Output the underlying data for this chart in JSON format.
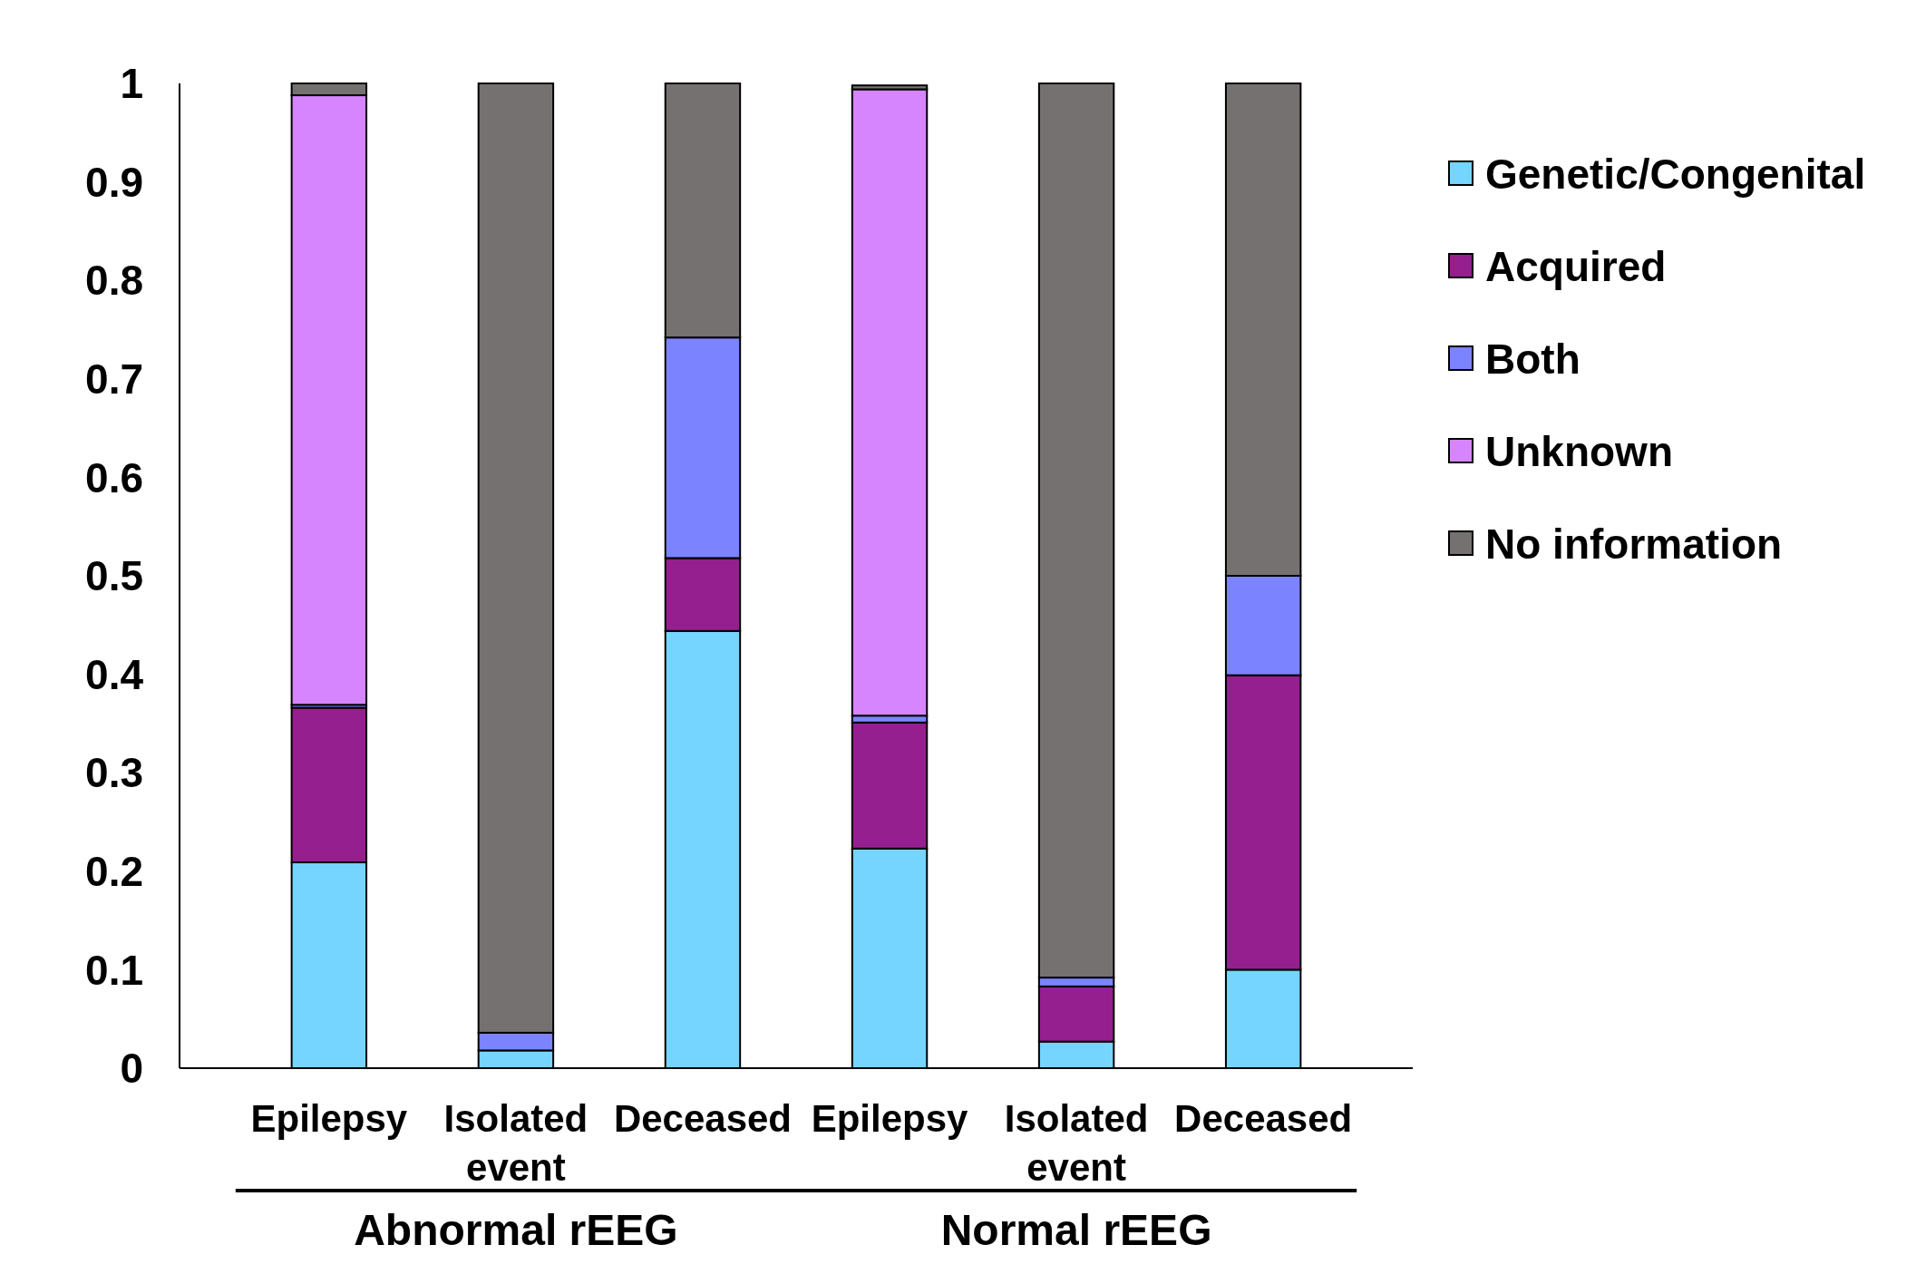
{
  "chart_data": {
    "type": "bar",
    "stacked": true,
    "categories": [
      "Epilepsy",
      "Isolated event",
      "Deceased",
      "Epilepsy",
      "Isolated event",
      "Deceased"
    ],
    "series": [
      {
        "name": "Genetic/Congenital",
        "color": "#75d5fe",
        "values": [
          0.209,
          0.018,
          0.444,
          0.223,
          0.027,
          0.1
        ]
      },
      {
        "name": "Acquired",
        "color": "#951f8f",
        "values": [
          0.157,
          0,
          0.074,
          0.128,
          0.056,
          0.299
        ]
      },
      {
        "name": "Both",
        "color": "#7c83fe",
        "values": [
          0.003,
          0.018,
          0.224,
          0.007,
          0.009,
          0.101
        ]
      },
      {
        "name": "Unknown",
        "color": "#d685fe",
        "values": [
          0.619,
          0,
          0,
          0.636,
          0,
          0
        ]
      },
      {
        "name": "No information",
        "color": "#767171",
        "values": [
          0.012,
          0.964,
          0.258,
          0.004,
          0.908,
          0.5
        ]
      }
    ],
    "ylim": [
      0,
      1
    ],
    "yticks": [
      0,
      0.1,
      0.2,
      0.3,
      0.4,
      0.5,
      0.6,
      0.7,
      0.8,
      0.9,
      1
    ],
    "legend": "right",
    "grid": false,
    "annotations": [
      "Abnormal rEEG",
      "Normal rEEG"
    ]
  }
}
